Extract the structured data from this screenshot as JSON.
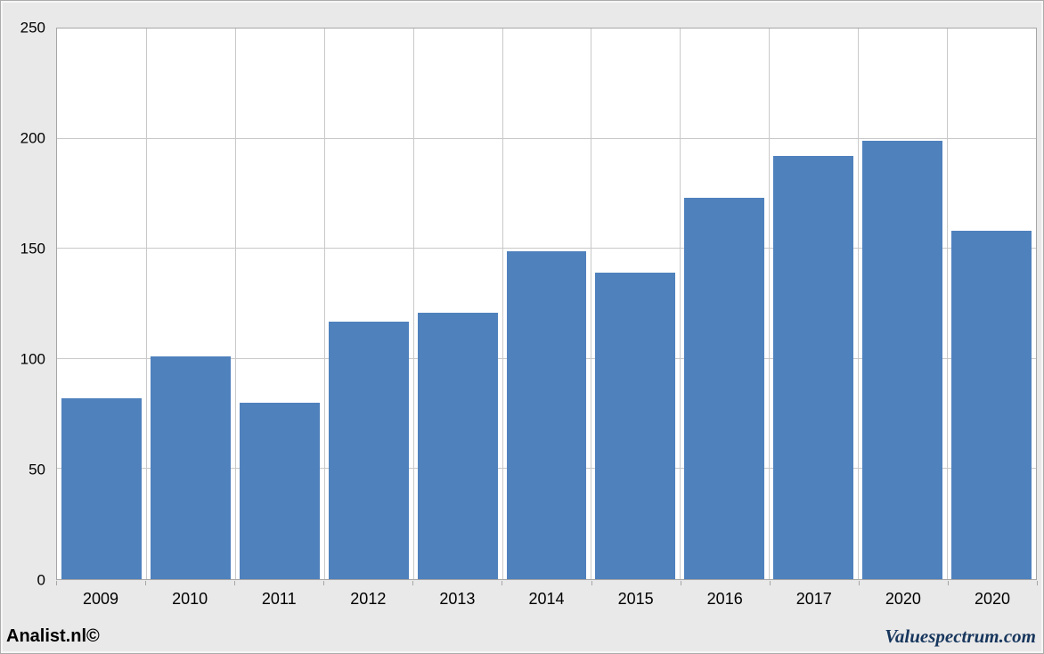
{
  "footer": {
    "left": "Analist.nl©",
    "right": "Valuespectrum.com"
  },
  "colors": {
    "bar": "#4f81bd",
    "gridline": "#c9c9c9",
    "plot_border": "#a6a6a6",
    "background": "#e9e9e9",
    "plot_background": "#ffffff",
    "footer_right_text": "#17365d",
    "footer_left_text": "#000000"
  },
  "chart_data": {
    "type": "bar",
    "title": "",
    "xlabel": "",
    "ylabel": "",
    "categories": [
      "2009",
      "2010",
      "2011",
      "2012",
      "2013",
      "2014",
      "2015",
      "2016",
      "2017",
      "2020",
      "2020"
    ],
    "values": [
      82,
      101,
      80,
      117,
      121,
      149,
      139,
      173,
      192,
      199,
      158
    ],
    "ylim": [
      0,
      250
    ],
    "yticks": [
      0,
      50,
      100,
      150,
      200,
      250
    ],
    "grid": true,
    "vertical_gridlines": true,
    "legend_position": "none"
  }
}
